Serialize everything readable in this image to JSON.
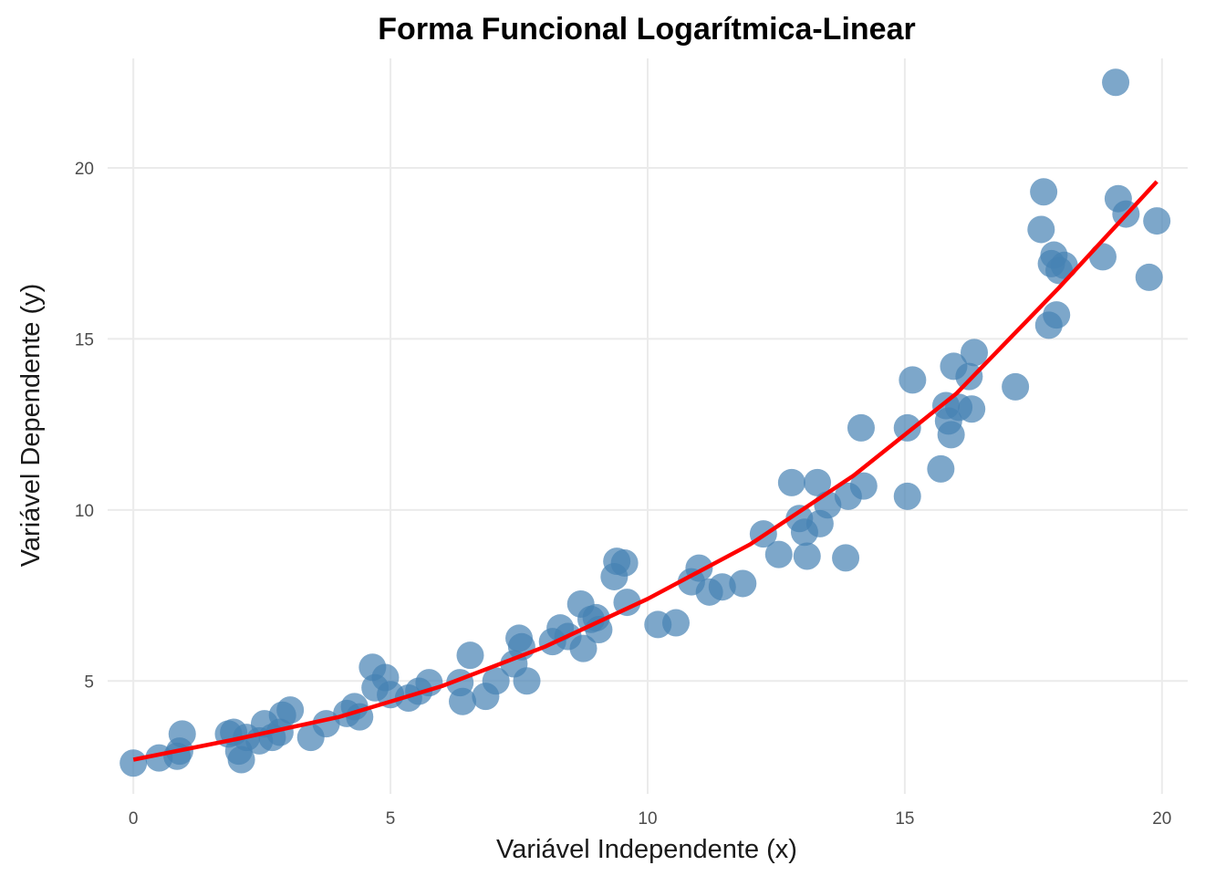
{
  "chart_data": {
    "type": "scatter",
    "title": "Forma Funcional Logarítmica-Linear",
    "xlabel": "Variável Independente (x)",
    "ylabel": "Variável Dependente (y)",
    "xlim": [
      -0.5,
      20.5
    ],
    "ylim": [
      1.7,
      23.2
    ],
    "x_ticks": [
      0,
      5,
      10,
      15,
      20
    ],
    "y_ticks": [
      5,
      10,
      15,
      20
    ],
    "x_tick_labels": [
      "0",
      "5",
      "10",
      "15",
      "20"
    ],
    "y_tick_labels": [
      "5",
      "10",
      "15",
      "20"
    ],
    "grid": true,
    "point_color": "#4682B4",
    "line_color": "#FF0000",
    "points": [
      {
        "x": 0.0,
        "y": 2.6
      },
      {
        "x": 0.5,
        "y": 2.75
      },
      {
        "x": 0.85,
        "y": 2.8
      },
      {
        "x": 0.9,
        "y": 2.95
      },
      {
        "x": 0.95,
        "y": 3.45
      },
      {
        "x": 1.85,
        "y": 3.45
      },
      {
        "x": 1.95,
        "y": 3.5
      },
      {
        "x": 2.05,
        "y": 2.95
      },
      {
        "x": 2.1,
        "y": 2.7
      },
      {
        "x": 2.2,
        "y": 3.35
      },
      {
        "x": 2.45,
        "y": 3.25
      },
      {
        "x": 2.55,
        "y": 3.75
      },
      {
        "x": 2.7,
        "y": 3.35
      },
      {
        "x": 2.85,
        "y": 3.5
      },
      {
        "x": 2.9,
        "y": 4.0
      },
      {
        "x": 3.05,
        "y": 4.15
      },
      {
        "x": 3.45,
        "y": 3.35
      },
      {
        "x": 3.75,
        "y": 3.75
      },
      {
        "x": 4.15,
        "y": 4.05
      },
      {
        "x": 4.3,
        "y": 4.25
      },
      {
        "x": 4.4,
        "y": 3.95
      },
      {
        "x": 4.65,
        "y": 5.4
      },
      {
        "x": 4.7,
        "y": 4.8
      },
      {
        "x": 4.9,
        "y": 5.1
      },
      {
        "x": 5.0,
        "y": 4.6
      },
      {
        "x": 5.35,
        "y": 4.5
      },
      {
        "x": 5.55,
        "y": 4.7
      },
      {
        "x": 5.75,
        "y": 4.95
      },
      {
        "x": 6.35,
        "y": 4.95
      },
      {
        "x": 6.4,
        "y": 4.4
      },
      {
        "x": 6.55,
        "y": 5.75
      },
      {
        "x": 6.85,
        "y": 4.55
      },
      {
        "x": 7.05,
        "y": 5.0
      },
      {
        "x": 7.4,
        "y": 5.5
      },
      {
        "x": 7.5,
        "y": 6.25
      },
      {
        "x": 7.55,
        "y": 6.0
      },
      {
        "x": 7.65,
        "y": 5.0
      },
      {
        "x": 8.15,
        "y": 6.15
      },
      {
        "x": 8.3,
        "y": 6.55
      },
      {
        "x": 8.45,
        "y": 6.3
      },
      {
        "x": 8.7,
        "y": 7.25
      },
      {
        "x": 8.75,
        "y": 5.95
      },
      {
        "x": 8.9,
        "y": 6.8
      },
      {
        "x": 9.0,
        "y": 6.85
      },
      {
        "x": 9.05,
        "y": 6.5
      },
      {
        "x": 9.35,
        "y": 8.05
      },
      {
        "x": 9.4,
        "y": 8.5
      },
      {
        "x": 9.55,
        "y": 8.45
      },
      {
        "x": 9.6,
        "y": 7.3
      },
      {
        "x": 10.2,
        "y": 6.65
      },
      {
        "x": 10.55,
        "y": 6.7
      },
      {
        "x": 10.85,
        "y": 7.9
      },
      {
        "x": 11.0,
        "y": 8.3
      },
      {
        "x": 11.2,
        "y": 7.6
      },
      {
        "x": 11.45,
        "y": 7.75
      },
      {
        "x": 11.85,
        "y": 7.85
      },
      {
        "x": 12.25,
        "y": 9.3
      },
      {
        "x": 12.55,
        "y": 8.7
      },
      {
        "x": 12.8,
        "y": 10.8
      },
      {
        "x": 12.95,
        "y": 9.75
      },
      {
        "x": 13.05,
        "y": 9.35
      },
      {
        "x": 13.1,
        "y": 8.65
      },
      {
        "x": 13.3,
        "y": 10.8
      },
      {
        "x": 13.35,
        "y": 9.6
      },
      {
        "x": 13.5,
        "y": 10.15
      },
      {
        "x": 13.85,
        "y": 8.6
      },
      {
        "x": 13.9,
        "y": 10.4
      },
      {
        "x": 14.15,
        "y": 12.4
      },
      {
        "x": 14.2,
        "y": 10.7
      },
      {
        "x": 15.05,
        "y": 10.4
      },
      {
        "x": 15.05,
        "y": 12.4
      },
      {
        "x": 15.15,
        "y": 13.8
      },
      {
        "x": 15.7,
        "y": 11.2
      },
      {
        "x": 15.8,
        "y": 13.05
      },
      {
        "x": 15.85,
        "y": 12.6
      },
      {
        "x": 15.9,
        "y": 12.2
      },
      {
        "x": 15.95,
        "y": 14.2
      },
      {
        "x": 16.05,
        "y": 13.0
      },
      {
        "x": 16.25,
        "y": 13.9
      },
      {
        "x": 16.3,
        "y": 12.95
      },
      {
        "x": 16.35,
        "y": 14.6
      },
      {
        "x": 17.15,
        "y": 13.6
      },
      {
        "x": 17.65,
        "y": 18.2
      },
      {
        "x": 17.7,
        "y": 19.3
      },
      {
        "x": 17.8,
        "y": 15.4
      },
      {
        "x": 17.85,
        "y": 17.2
      },
      {
        "x": 17.9,
        "y": 17.45
      },
      {
        "x": 17.95,
        "y": 15.7
      },
      {
        "x": 18.0,
        "y": 17.0
      },
      {
        "x": 18.1,
        "y": 17.15
      },
      {
        "x": 18.85,
        "y": 17.4
      },
      {
        "x": 19.1,
        "y": 22.5
      },
      {
        "x": 19.15,
        "y": 19.1
      },
      {
        "x": 19.3,
        "y": 18.65
      },
      {
        "x": 19.75,
        "y": 16.8
      },
      {
        "x": 19.9,
        "y": 18.45
      }
    ],
    "fit_line": {
      "x": [
        0,
        2,
        4,
        6,
        8,
        10,
        12,
        14,
        16,
        18,
        19.9
      ],
      "y": [
        2.7,
        3.3,
        3.95,
        4.85,
        6.0,
        7.4,
        9.0,
        11.0,
        13.4,
        16.5,
        19.6
      ]
    }
  }
}
